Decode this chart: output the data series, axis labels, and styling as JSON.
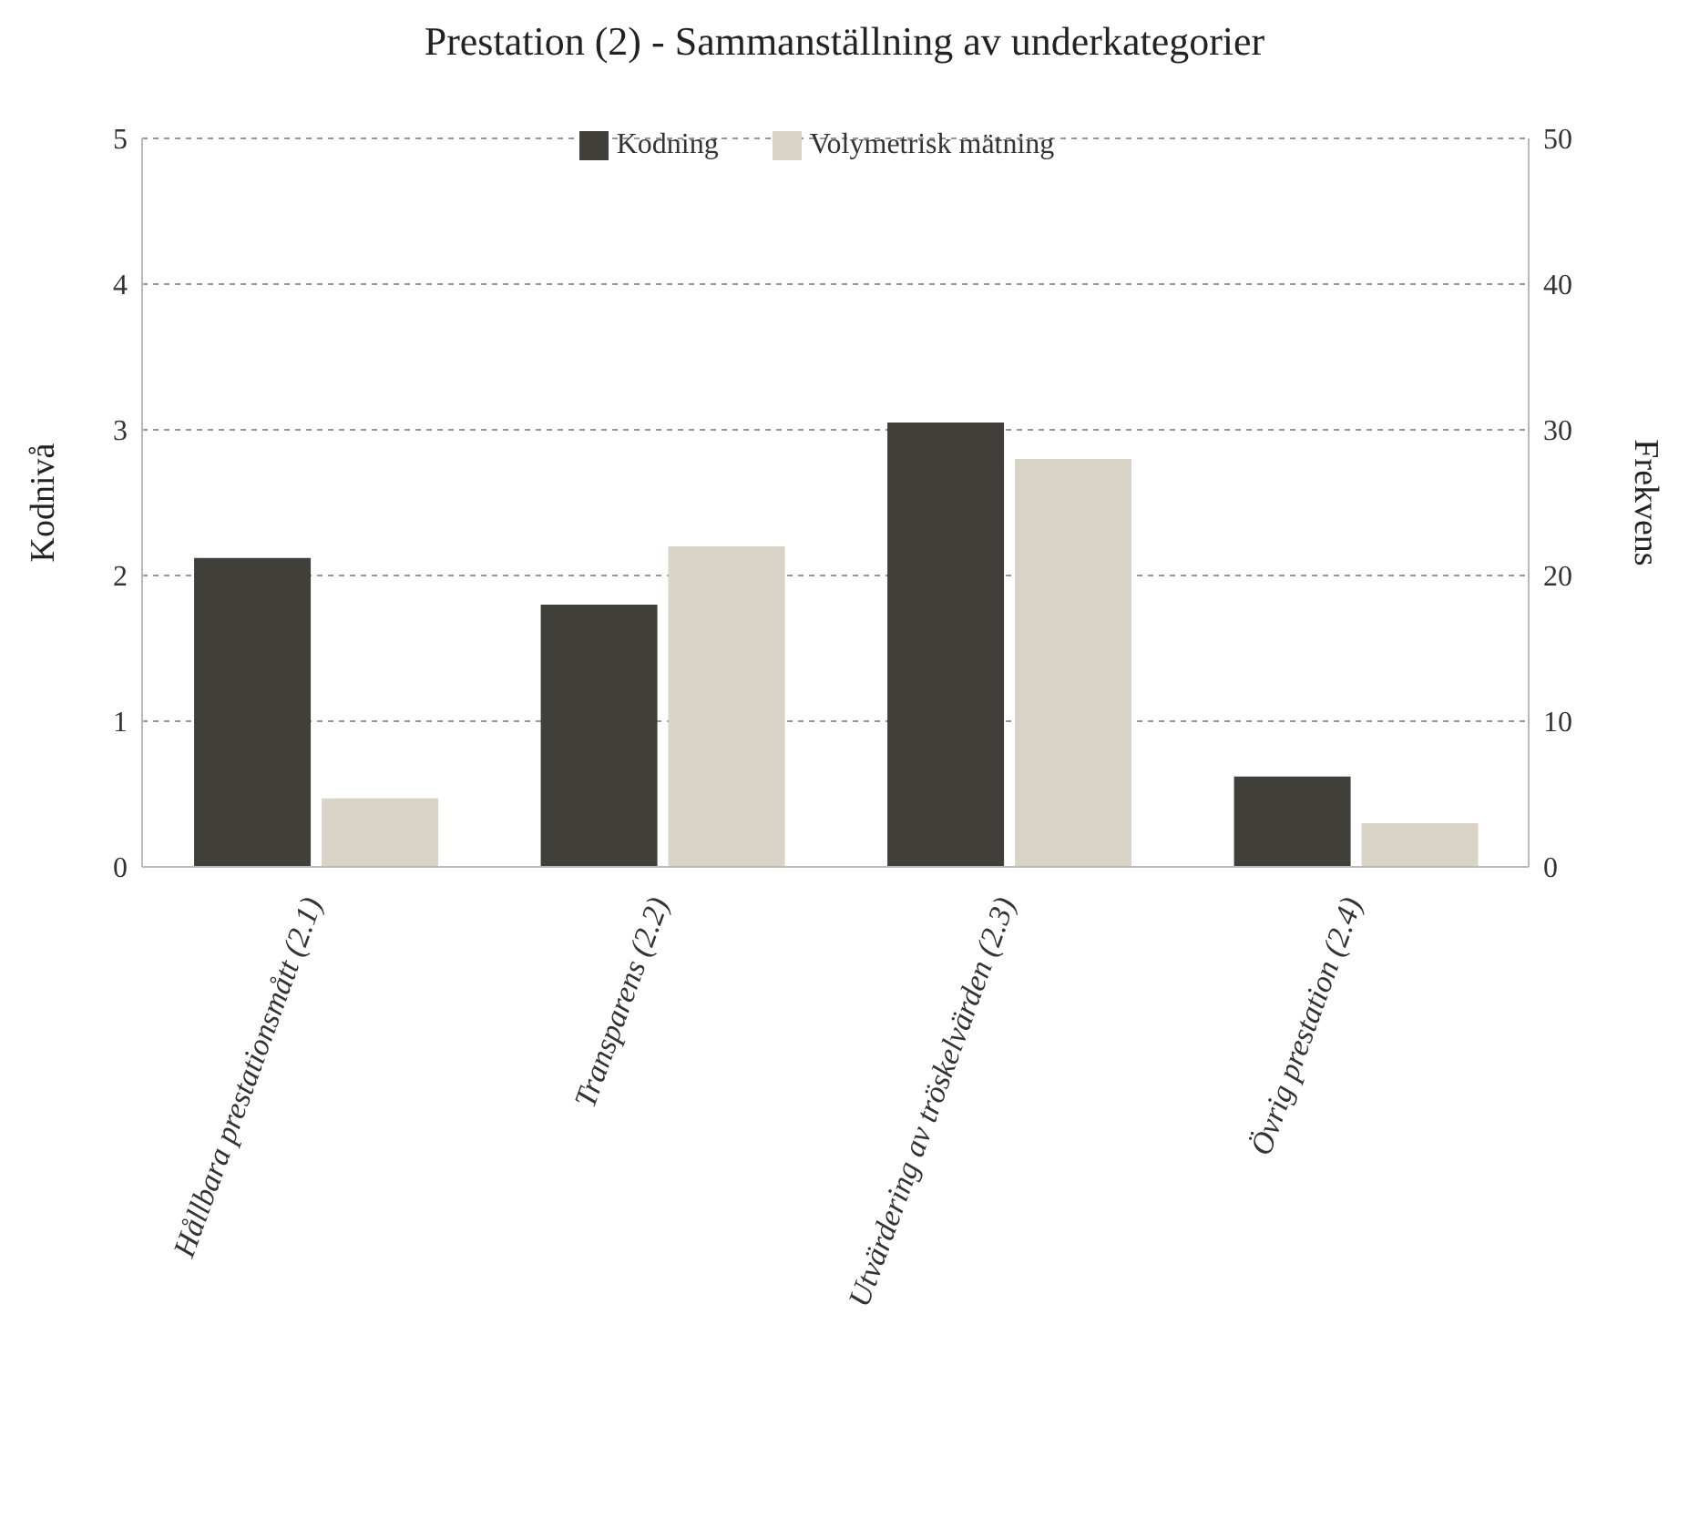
{
  "chart_data": {
    "type": "bar",
    "title": "Prestation (2) - Sammanställning av underkategorier",
    "ylabel": "Kodnivå",
    "y2label": "Frekvens",
    "categories": [
      "Hållbara prestationsmått (2.1)",
      "Transparens (2.2)",
      "Utvärdering av tröskelvärden (2.3)",
      "Övrig prestation (2.4)"
    ],
    "series": [
      {
        "name": "Kodning",
        "color": "#403f3a",
        "values": [
          2.12,
          1.8,
          3.05,
          0.62
        ]
      },
      {
        "name": "Volymetrisk mätning",
        "color": "#d9d3c8",
        "values": [
          4.7,
          22,
          28,
          3
        ],
        "axis": "y2"
      }
    ],
    "ylim": [
      0,
      5
    ],
    "yticks": [
      0,
      1,
      2,
      3,
      4,
      5
    ],
    "y2lim": [
      0,
      50
    ],
    "y2ticks": [
      0,
      10,
      20,
      30,
      40,
      50
    ],
    "grid": "y",
    "legend": "top"
  }
}
